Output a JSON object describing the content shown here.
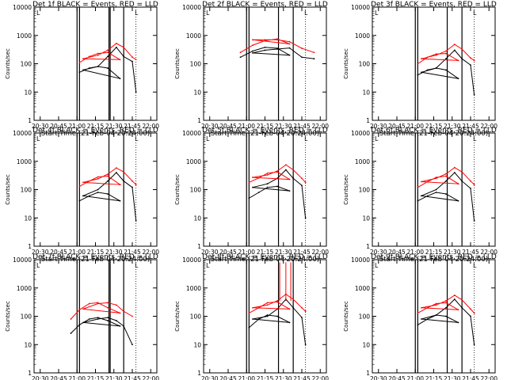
{
  "figure": {
    "x_ticks": [
      "20:30",
      "20:45",
      "21:00",
      "21:15",
      "21:30",
      "21:45",
      "22:00"
    ],
    "y_ticks": [
      "1",
      "10",
      "100",
      "1000",
      "10000"
    ],
    "xlabel": "Start Time (21-Feb-04 20:24:00)",
    "ylabel": "Counts/sec",
    "colors": {
      "events": "#000000",
      "lld": "#ff0000"
    }
  },
  "chart_data": [
    {
      "type": "line",
      "title": "Det 1f BLACK = Events, RED = LLD",
      "corner_marks": [
        "L",
        "L"
      ],
      "x_minutes": {
        "start": 20.5,
        "end": 22.0
      },
      "ylim": [
        1,
        10000
      ],
      "y_scale": "log",
      "x": [
        20.62,
        20.7,
        20.77,
        20.85,
        20.95,
        21.05,
        21.17,
        21.25,
        21.32,
        21.38,
        21.45,
        21.48
      ],
      "series": [
        {
          "name": "Events",
          "values": [
            50,
            70,
            80,
            70,
            30,
            60,
            80,
            180,
            380,
            180,
            120,
            10
          ]
        },
        {
          "name": "LLD",
          "values": [
            110,
            180,
            230,
            250,
            140,
            150,
            200,
            300,
            520,
            380,
            170,
            140
          ]
        }
      ],
      "saa_lines": [
        20.86,
        20.87,
        20.98,
        21.0,
        21.02
      ],
      "dotted_lines": [
        20.62,
        21.48
      ]
    },
    {
      "type": "line",
      "title": "Det 2f BLACK = Events, RED = LLD",
      "corner_marks": [
        "L",
        "L"
      ],
      "x_minutes": {
        "start": 20.5,
        "end": 22.0
      },
      "ylim": [
        1,
        10000
      ],
      "y_scale": "log",
      "x": [
        20.55,
        20.65,
        20.75,
        20.85,
        20.95,
        21.05,
        21.15,
        21.25,
        21.35,
        21.45,
        21.55
      ],
      "series": [
        {
          "name": "Events",
          "values": [
            170,
            280,
            380,
            350,
            200,
            240,
            300,
            330,
            360,
            170,
            150
          ]
        },
        {
          "name": "LLD",
          "values": [
            250,
            450,
            650,
            750,
            500,
            700,
            700,
            700,
            600,
            350,
            250
          ]
        }
      ],
      "saa_lines": [
        20.86,
        20.98,
        21.0,
        21.02
      ],
      "dotted_lines": [
        20.62,
        21.48
      ]
    },
    {
      "type": "line",
      "title": "Det 3f BLACK = Events, RED = LLD",
      "corner_marks": [
        "L",
        "L"
      ],
      "x_minutes": {
        "start": 20.5,
        "end": 22.0
      },
      "ylim": [
        1,
        10000
      ],
      "y_scale": "log",
      "x": [
        20.62,
        20.7,
        20.77,
        20.85,
        20.95,
        21.05,
        21.17,
        21.25,
        21.32,
        21.38,
        21.45,
        21.48
      ],
      "series": [
        {
          "name": "Events",
          "values": [
            40,
            60,
            70,
            60,
            30,
            50,
            70,
            150,
            300,
            150,
            90,
            8
          ]
        },
        {
          "name": "LLD",
          "values": [
            100,
            170,
            220,
            230,
            130,
            150,
            200,
            280,
            480,
            330,
            160,
            130
          ]
        }
      ],
      "saa_lines": [
        20.86,
        20.98,
        21.0,
        21.02
      ],
      "dotted_lines": [
        20.62,
        21.48
      ]
    },
    {
      "type": "line",
      "title": "Det 4f BLACK = Events, RED = LLD",
      "corner_marks": [
        "L",
        "L"
      ],
      "x_minutes": {
        "start": 20.5,
        "end": 22.0
      },
      "ylim": [
        1,
        10000
      ],
      "y_scale": "log",
      "x": [
        20.62,
        20.7,
        20.77,
        20.85,
        20.95,
        21.05,
        21.17,
        21.25,
        21.32,
        21.38,
        21.45,
        21.48
      ],
      "series": [
        {
          "name": "Events",
          "values": [
            40,
            60,
            80,
            70,
            40,
            60,
            100,
            200,
            400,
            200,
            120,
            8
          ]
        },
        {
          "name": "LLD",
          "values": [
            130,
            200,
            280,
            300,
            150,
            180,
            240,
            350,
            580,
            420,
            200,
            150
          ]
        }
      ],
      "saa_lines": [
        20.86,
        20.98,
        21.0,
        21.02
      ],
      "dotted_lines": [
        20.62,
        21.48
      ]
    },
    {
      "type": "line",
      "title": "Det 5f BLACK = Events, RED = LLD",
      "corner_marks": [
        "L",
        "L"
      ],
      "x_minutes": {
        "start": 20.5,
        "end": 22.0
      },
      "ylim": [
        1,
        10000
      ],
      "y_scale": "log",
      "x": [
        20.62,
        20.7,
        20.77,
        20.85,
        20.95,
        21.05,
        21.17,
        21.25,
        21.32,
        21.38,
        21.45,
        21.48
      ],
      "series": [
        {
          "name": "Events",
          "values": [
            50,
            80,
            120,
            130,
            90,
            120,
            160,
            250,
            500,
            250,
            140,
            10
          ]
        },
        {
          "name": "LLD",
          "values": [
            180,
            260,
            380,
            420,
            230,
            270,
            330,
            450,
            750,
            500,
            250,
            180
          ]
        }
      ],
      "saa_lines": [
        20.86,
        20.98,
        21.0,
        21.02
      ],
      "dotted_lines": [
        20.62,
        21.48
      ]
    },
    {
      "type": "line",
      "title": "Det 6f BLACK = Events, RED = LLD",
      "corner_marks": [
        "L",
        "L"
      ],
      "x_minutes": {
        "start": 20.5,
        "end": 22.0
      },
      "ylim": [
        1,
        10000
      ],
      "y_scale": "log",
      "x": [
        20.62,
        20.7,
        20.77,
        20.85,
        20.95,
        21.05,
        21.17,
        21.25,
        21.32,
        21.38,
        21.45,
        21.48
      ],
      "series": [
        {
          "name": "Events",
          "values": [
            40,
            60,
            80,
            70,
            40,
            60,
            100,
            200,
            400,
            200,
            110,
            8
          ]
        },
        {
          "name": "LLD",
          "values": [
            120,
            190,
            270,
            300,
            160,
            190,
            250,
            360,
            600,
            420,
            200,
            150
          ]
        }
      ],
      "saa_lines": [
        20.86,
        20.98,
        21.0,
        21.02
      ],
      "dotted_lines": [
        20.62,
        21.48
      ]
    },
    {
      "type": "line",
      "title": "Det 7f BLACK = Events, RED = LLD",
      "corner_marks": [
        "L",
        "L"
      ],
      "x_minutes": {
        "start": 20.5,
        "end": 22.0
      },
      "ylim": [
        1,
        10000
      ],
      "y_scale": "log",
      "x": [
        20.55,
        20.62,
        20.7,
        20.77,
        20.85,
        20.95,
        21.05,
        21.17,
        21.25,
        21.32,
        21.38,
        21.45
      ],
      "series": [
        {
          "name": "Events",
          "values": [
            25,
            50,
            80,
            90,
            70,
            45,
            60,
            80,
            90,
            70,
            45,
            10
          ]
        },
        {
          "name": "LLD",
          "values": [
            80,
            170,
            280,
            300,
            200,
            130,
            180,
            280,
            300,
            250,
            150,
            100
          ]
        }
      ],
      "saa_lines": [
        20.86,
        20.87,
        20.98,
        21.0,
        21.02
      ],
      "dotted_lines": [
        20.62,
        21.48
      ]
    },
    {
      "type": "line",
      "title": "Det 8f BLACK = Events, RED = LLD",
      "corner_marks": [
        "L",
        "L"
      ],
      "x_minutes": {
        "start": 20.5,
        "end": 22.0
      },
      "ylim": [
        1,
        10000
      ],
      "y_scale": "log",
      "x": [
        20.62,
        20.7,
        20.77,
        20.85,
        20.95,
        21.05,
        21.17,
        21.25,
        21.32,
        21.38,
        21.45,
        21.48
      ],
      "series": [
        {
          "name": "Events",
          "values": [
            40,
            80,
            110,
            100,
            60,
            80,
            100,
            180,
            400,
            200,
            90,
            10
          ]
        },
        {
          "name": "LLD",
          "values": [
            130,
            200,
            300,
            320,
            180,
            200,
            250,
            350,
            600,
            400,
            200,
            150
          ]
        }
      ],
      "spikes_lld": [
        21.27,
        21.32,
        21.36
      ],
      "saa_lines": [
        20.86,
        20.98,
        21.0,
        21.02
      ],
      "dotted_lines": [
        20.62,
        21.48
      ]
    },
    {
      "type": "line",
      "title": "Det 9f BLACK = Events, RED = LLD",
      "corner_marks": [
        "L",
        "L"
      ],
      "x_minutes": {
        "start": 20.5,
        "end": 22.0
      },
      "ylim": [
        1,
        10000
      ],
      "y_scale": "log",
      "x": [
        20.62,
        20.7,
        20.77,
        20.85,
        20.95,
        21.05,
        21.17,
        21.25,
        21.32,
        21.38,
        21.45,
        21.48
      ],
      "series": [
        {
          "name": "Events",
          "values": [
            50,
            80,
            110,
            100,
            60,
            80,
            110,
            200,
            400,
            200,
            100,
            10
          ]
        },
        {
          "name": "LLD",
          "values": [
            130,
            200,
            280,
            300,
            170,
            200,
            250,
            350,
            550,
            380,
            180,
            130
          ]
        }
      ],
      "saa_lines": [
        20.86,
        20.98,
        21.0,
        21.02
      ],
      "dotted_lines": [
        20.62,
        21.48
      ]
    }
  ]
}
